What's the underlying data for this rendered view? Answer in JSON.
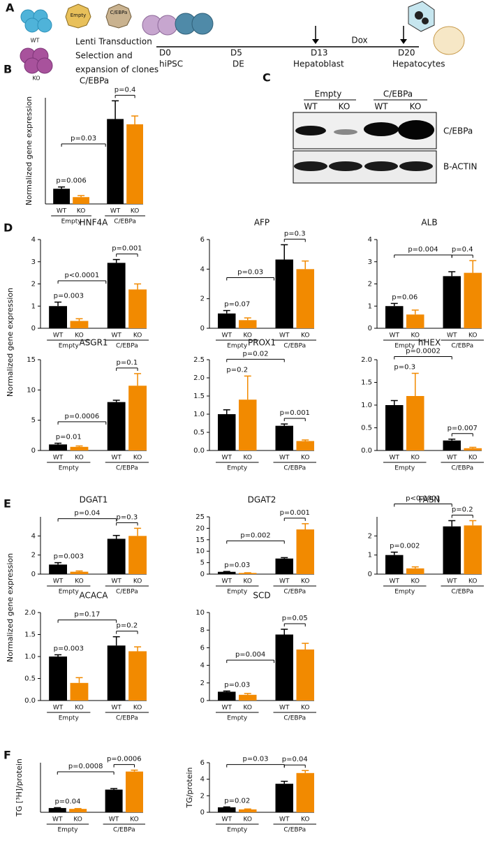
{
  "panel_labels": [
    "A",
    "B",
    "C",
    "D",
    "E",
    "F"
  ],
  "shared_ylabels": [
    "Normalized gene expression",
    "Normalized gene expression"
  ],
  "schematic": {
    "cells": [
      "WT",
      "KO"
    ],
    "vectors": [
      "Empty",
      "C/EBPa"
    ],
    "steps": [
      "Lenti Transduction",
      "Selection and",
      "expansion of clones"
    ],
    "days": [
      "D0",
      "D5",
      "D13",
      "D20"
    ],
    "stages": [
      "hiPSC",
      "DE",
      "Hepatoblast",
      "Hepatocytes"
    ],
    "treatment": "Dox"
  },
  "blot": {
    "groups": [
      "Empty",
      "C/EBPa"
    ],
    "lanes": [
      "WT",
      "KO",
      "WT",
      "KO"
    ],
    "rows": [
      "C/EBPa",
      "B-ACTIN"
    ]
  },
  "chart_data": [
    {
      "type": "bar",
      "title": "C/EBPa",
      "ylabel": "Normalized gene expression",
      "categories": [
        "WT",
        "KO",
        "WT",
        "KO"
      ],
      "groups": [
        "Empty",
        "C/EBPa"
      ],
      "values": [
        1.0,
        0.45,
        5.6,
        5.25
      ],
      "errors": [
        0.12,
        0.1,
        1.2,
        0.55
      ],
      "colors": [
        "#000000",
        "#f28a00",
        "#000000",
        "#f28a00"
      ],
      "ylim": [
        0,
        7
      ],
      "annotations": {
        "empty": "p=0.006",
        "cebpa": "p=0.4",
        "wt": "p=0.03"
      }
    },
    {
      "type": "bar",
      "title": "HNF4A",
      "categories": [
        "WT",
        "KO",
        "WT",
        "KO"
      ],
      "groups": [
        "Empty",
        "C/EBPa"
      ],
      "values": [
        1.0,
        0.33,
        2.95,
        1.75
      ],
      "errors": [
        0.18,
        0.1,
        0.15,
        0.25
      ],
      "colors": [
        "#000000",
        "#f28a00",
        "#000000",
        "#f28a00"
      ],
      "ylim": [
        0,
        4
      ],
      "yticks": [
        0,
        1,
        2,
        3,
        4
      ],
      "annotations": {
        "empty": "p=0.003",
        "cebpa": "p=0.001",
        "wt": "p<0.0001"
      }
    },
    {
      "type": "bar",
      "title": "AFP",
      "categories": [
        "WT",
        "KO",
        "WT",
        "KO"
      ],
      "groups": [
        "Empty",
        "C/EBPa"
      ],
      "values": [
        1.0,
        0.55,
        4.65,
        4.0
      ],
      "errors": [
        0.2,
        0.15,
        1.0,
        0.55
      ],
      "colors": [
        "#000000",
        "#f28a00",
        "#000000",
        "#f28a00"
      ],
      "ylim": [
        0,
        6
      ],
      "yticks": [
        0,
        2,
        4,
        6
      ],
      "annotations": {
        "empty": "p=0.07",
        "cebpa": "p=0.3",
        "wt": "p=0.03"
      }
    },
    {
      "type": "bar",
      "title": "ALB",
      "categories": [
        "WT",
        "KO",
        "WT",
        "KO"
      ],
      "groups": [
        "Empty",
        "C/EBPa"
      ],
      "values": [
        1.0,
        0.62,
        2.35,
        2.5
      ],
      "errors": [
        0.12,
        0.2,
        0.2,
        0.55
      ],
      "colors": [
        "#000000",
        "#f28a00",
        "#000000",
        "#f28a00"
      ],
      "ylim": [
        0,
        4
      ],
      "yticks": [
        0,
        1,
        2,
        3,
        4
      ],
      "annotations": {
        "empty": "p=0.06",
        "cebpa": "p=0.4",
        "wt": "p=0.004"
      }
    },
    {
      "type": "bar",
      "title": "ASGR1",
      "categories": [
        "WT",
        "KO",
        "WT",
        "KO"
      ],
      "groups": [
        "Empty",
        "C/EBPa"
      ],
      "values": [
        1.0,
        0.6,
        8.0,
        10.7
      ],
      "errors": [
        0.2,
        0.15,
        0.3,
        2.0
      ],
      "colors": [
        "#000000",
        "#f28a00",
        "#000000",
        "#f28a00"
      ],
      "ylim": [
        0,
        15
      ],
      "yticks": [
        0,
        5,
        10,
        15
      ],
      "annotations": {
        "empty": "p=0.01",
        "cebpa": "p=0.1",
        "wt": "p=0.0006"
      }
    },
    {
      "type": "bar",
      "title": "PROX1",
      "categories": [
        "WT",
        "KO",
        "WT",
        "KO"
      ],
      "groups": [
        "Empty",
        "C/EBPa"
      ],
      "values": [
        1.0,
        1.4,
        0.68,
        0.26
      ],
      "errors": [
        0.12,
        0.65,
        0.05,
        0.03
      ],
      "colors": [
        "#000000",
        "#f28a00",
        "#000000",
        "#f28a00"
      ],
      "ylim": [
        0,
        2.5
      ],
      "yticks": [
        {
          "value": 0,
          "label": "0.0"
        },
        0.5,
        {
          "value": 1,
          "label": "1.0"
        },
        1.5,
        {
          "value": 2,
          "label": "2.0"
        },
        2.5
      ],
      "annotations": {
        "empty": "p=0.2",
        "cebpa": "p=0.001",
        "wt": "p=0.02"
      }
    },
    {
      "type": "bar",
      "title": "hHEX",
      "categories": [
        "WT",
        "KO",
        "WT",
        "KO"
      ],
      "groups": [
        "Empty",
        "C/EBPa"
      ],
      "values": [
        1.0,
        1.2,
        0.22,
        0.05
      ],
      "errors": [
        0.1,
        0.5,
        0.03,
        0.02
      ],
      "colors": [
        "#000000",
        "#f28a00",
        "#000000",
        "#f28a00"
      ],
      "ylim": [
        0,
        2
      ],
      "yticks": [
        {
          "value": 0,
          "label": "0.0"
        },
        0.5,
        {
          "value": 1,
          "label": "1.0"
        },
        1.5,
        {
          "value": 2,
          "label": "2.0"
        }
      ],
      "annotations": {
        "empty": "p=0.3",
        "cebpa": "p=0.007",
        "wt": "p=0.0002"
      }
    },
    {
      "type": "bar",
      "title": "DGAT1",
      "categories": [
        "WT",
        "KO",
        "WT",
        "KO"
      ],
      "groups": [
        "Empty",
        "C/EBPa"
      ],
      "values": [
        1.0,
        0.25,
        3.7,
        4.0
      ],
      "errors": [
        0.2,
        0.08,
        0.35,
        0.8
      ],
      "colors": [
        "#000000",
        "#f28a00",
        "#000000",
        "#f28a00"
      ],
      "ylim": [
        0,
        6
      ],
      "yticks": [
        0,
        2,
        4
      ],
      "annotations": {
        "empty": "p=0.003",
        "cebpa": "p=0.3",
        "wt": "p=0.04"
      }
    },
    {
      "type": "bar",
      "title": "DGAT2",
      "categories": [
        "WT",
        "KO",
        "WT",
        "KO"
      ],
      "groups": [
        "Empty",
        "C/EBPa"
      ],
      "values": [
        1.0,
        0.5,
        6.8,
        19.5
      ],
      "errors": [
        0.15,
        0.1,
        0.4,
        2.5
      ],
      "colors": [
        "#000000",
        "#f28a00",
        "#000000",
        "#f28a00"
      ],
      "ylim": [
        0,
        25
      ],
      "yticks": [
        0,
        5,
        10,
        15,
        20,
        25
      ],
      "annotations": {
        "empty": "p=0.03",
        "cebpa": "p=0.001",
        "wt": "p=0.002"
      }
    },
    {
      "type": "bar",
      "title": "FASN",
      "categories": [
        "WT",
        "KO",
        "WT",
        "KO"
      ],
      "groups": [
        "Empty",
        "C/EBPa"
      ],
      "values": [
        1.0,
        0.3,
        2.5,
        2.55
      ],
      "errors": [
        0.15,
        0.08,
        0.3,
        0.25
      ],
      "colors": [
        "#000000",
        "#f28a00",
        "#000000",
        "#f28a00"
      ],
      "ylim": [
        0,
        3
      ],
      "yticks": [
        0,
        1,
        2
      ],
      "annotations": {
        "empty": "p=0.002",
        "cebpa": "p=0.2",
        "wt": "p<0.0001"
      }
    },
    {
      "type": "bar",
      "title": "ACACA",
      "categories": [
        "WT",
        "KO",
        "WT",
        "KO"
      ],
      "groups": [
        "Empty",
        "C/EBPa"
      ],
      "values": [
        1.0,
        0.4,
        1.25,
        1.12
      ],
      "errors": [
        0.04,
        0.12,
        0.2,
        0.1
      ],
      "colors": [
        "#000000",
        "#f28a00",
        "#000000",
        "#f28a00"
      ],
      "ylim": [
        0,
        2
      ],
      "yticks": [
        {
          "value": 0,
          "label": "0.0"
        },
        0.5,
        {
          "value": 1,
          "label": "1.0"
        },
        1.5,
        {
          "value": 2,
          "label": "2.0"
        }
      ],
      "annotations": {
        "empty": "p=0.003",
        "cebpa": "p=0.2",
        "wt": "p=0.17"
      }
    },
    {
      "type": "bar",
      "title": "SCD",
      "categories": [
        "WT",
        "KO",
        "WT",
        "KO"
      ],
      "groups": [
        "Empty",
        "C/EBPa"
      ],
      "values": [
        1.0,
        0.65,
        7.5,
        5.8
      ],
      "errors": [
        0.08,
        0.15,
        0.6,
        0.7
      ],
      "colors": [
        "#000000",
        "#f28a00",
        "#000000",
        "#f28a00"
      ],
      "ylim": [
        0,
        10
      ],
      "yticks": [
        0,
        2,
        4,
        6,
        8,
        10
      ],
      "annotations": {
        "empty": "p=0.03",
        "cebpa": "p=0.05",
        "wt": "p=0.004"
      }
    },
    {
      "type": "bar",
      "ylabel": "TG [³H]/protein",
      "categories": [
        "WT",
        "KO",
        "WT",
        "KO"
      ],
      "groups": [
        "Empty",
        "C/EBPa"
      ],
      "values": [
        1.2,
        0.95,
        6.4,
        11.5
      ],
      "errors": [
        0.1,
        0.1,
        0.3,
        0.4
      ],
      "colors": [
        "#000000",
        "#f28a00",
        "#000000",
        "#f28a00"
      ],
      "ylim": [
        0,
        14
      ],
      "annotations": {
        "empty": "p=0.04",
        "cebpa": "p=0.0006",
        "wt": "p=0.0008"
      }
    },
    {
      "type": "bar",
      "ylabel": "TG/protein",
      "categories": [
        "WT",
        "KO",
        "WT",
        "KO"
      ],
      "groups": [
        "Empty",
        "C/EBPa"
      ],
      "values": [
        0.6,
        0.35,
        3.45,
        4.75
      ],
      "errors": [
        0.05,
        0.05,
        0.3,
        0.3
      ],
      "colors": [
        "#000000",
        "#f28a00",
        "#000000",
        "#f28a00"
      ],
      "ylim": [
        0,
        6
      ],
      "yticks": [
        0,
        2,
        4,
        6
      ],
      "annotations": {
        "empty": "p=0.02",
        "cebpa": "p=0.04",
        "wt": "p=0.03"
      }
    }
  ]
}
